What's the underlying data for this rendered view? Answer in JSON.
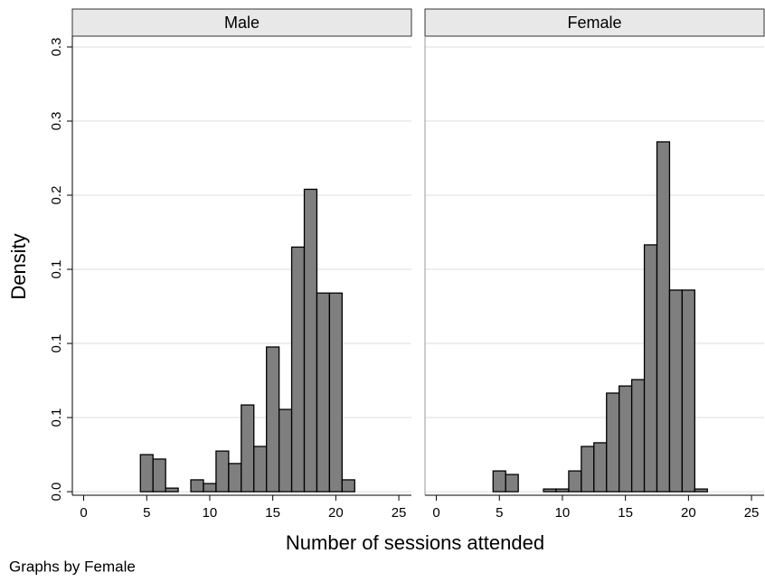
{
  "ylabel": "Density",
  "xlabel": "Number of sessions attended",
  "note": "Graphs by Female",
  "chart_data": [
    {
      "type": "histogram",
      "title": "Male",
      "color": "#7f7f7f",
      "bins": [
        4.5,
        5.5,
        6.5,
        7.5,
        8.5,
        9.5,
        10.5,
        11.5,
        12.5,
        13.5,
        14.5,
        15.5,
        16.5,
        17.5,
        18.5,
        19.5,
        20.5,
        21.5
      ],
      "values": [
        0.025,
        0.022,
        0.0024,
        0,
        0.008,
        0.0055,
        0.0274,
        0.019,
        0.0585,
        0.0305,
        0.0976,
        0.0555,
        0.165,
        0.204,
        0.134,
        0.134,
        0.008
      ],
      "xlim": [
        -0.9,
        26
      ],
      "xticks": [
        0,
        5,
        10,
        15,
        20,
        25
      ],
      "ylim": [
        -0.0024,
        0.3073
      ],
      "yticks": [
        {
          "value": 0,
          "label": "0.0"
        },
        {
          "value": 0.05,
          "label": "0.1"
        },
        {
          "value": 0.1,
          "label": "0.1"
        },
        {
          "value": 0.15,
          "label": "0.1"
        },
        {
          "value": 0.2,
          "label": "0.2"
        },
        {
          "value": 0.25,
          "label": "0.3"
        },
        {
          "value": 0.3,
          "label": "0.3"
        }
      ],
      "grid": true
    },
    {
      "type": "histogram",
      "title": "Female",
      "color": "#7f7f7f",
      "bins": [
        4.5,
        5.5,
        6.5,
        7.5,
        8.5,
        9.5,
        10.5,
        11.5,
        12.5,
        13.5,
        14.5,
        15.5,
        16.5,
        17.5,
        18.5,
        19.5,
        20.5,
        21.5
      ],
      "values": [
        0.014,
        0.0116,
        0,
        0,
        0.0018,
        0.0018,
        0.014,
        0.0305,
        0.033,
        0.0665,
        0.0713,
        0.0756,
        0.1665,
        0.236,
        0.136,
        0.136,
        0.0018
      ],
      "xlim": [
        -0.9,
        26
      ],
      "xticks": [
        0,
        5,
        10,
        15,
        20,
        25
      ],
      "ylim": [
        -0.0024,
        0.3073
      ],
      "yticks": [
        0,
        0.05,
        0.1,
        0.15,
        0.2,
        0.25,
        0.3
      ],
      "grid": true
    }
  ]
}
